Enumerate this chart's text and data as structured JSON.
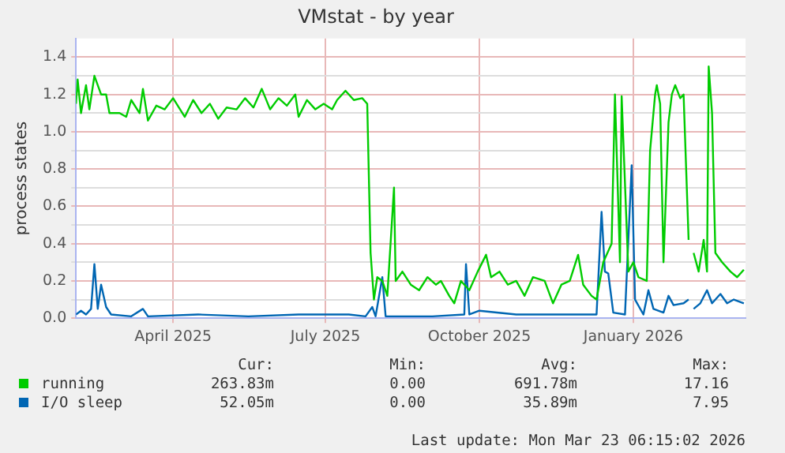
{
  "chart_data": {
    "type": "line",
    "title": "VMstat - by year",
    "ylabel": "process states",
    "xlim": [
      "2025-02-16",
      "2026-03-23"
    ],
    "xticks": [
      {
        "value": "2025-04-15",
        "label": "April 2025"
      },
      {
        "value": "2025-07-15",
        "label": "July 2025"
      },
      {
        "value": "2025-10-15",
        "label": "October 2025"
      },
      {
        "value": "2026-01-15",
        "label": "January 2026"
      }
    ],
    "ylim": [
      0,
      1.5
    ],
    "yticks": [
      {
        "value": 0,
        "label": "0.0"
      },
      {
        "value": 0.1,
        "label": null
      },
      {
        "value": 0.2,
        "label": "0.2"
      },
      {
        "value": 0.3,
        "label": null
      },
      {
        "value": 0.4,
        "label": "0.4"
      },
      {
        "value": 0.5,
        "label": null
      },
      {
        "value": 0.6,
        "label": "0.6"
      },
      {
        "value": 0.7,
        "label": null
      },
      {
        "value": 0.8,
        "label": "0.8"
      },
      {
        "value": 0.9,
        "label": null
      },
      {
        "value": 1,
        "label": "1.0"
      },
      {
        "value": 1.1,
        "label": null
      },
      {
        "value": 1.2,
        "label": "1.2"
      },
      {
        "value": 1.3,
        "label": null
      },
      {
        "value": 1.4,
        "label": "1.4"
      }
    ],
    "grid": true,
    "legend": "bottom left",
    "marker": "none",
    "line_style": "solid",
    "annotations": [
      "Cur:",
      "Min:",
      "Avg:",
      "Max:",
      "263.83m",
      "0.00",
      "691.78m",
      "17.16",
      "52.05m",
      "0.00",
      "35.89m",
      "7.95",
      "Last update: Mon Mar 23 06:15:02 2026"
    ],
    "series": [
      {
        "name": "running",
        "color": "#00cc00",
        "x": [
          "2025-02-16",
          "2025-02-17",
          "2025-02-19",
          "2025-02-22",
          "2025-02-24",
          "2025-02-27",
          "2025-03-03",
          "2025-03-06",
          "2025-03-08",
          "2025-03-14",
          "2025-03-18",
          "2025-03-21",
          "2025-03-26",
          "2025-03-28",
          "2025-03-31",
          "2025-04-05",
          "2025-04-10",
          "2025-04-15",
          "2025-04-22",
          "2025-04-27",
          "2025-05-02",
          "2025-05-07",
          "2025-05-12",
          "2025-05-17",
          "2025-05-23",
          "2025-05-28",
          "2025-06-02",
          "2025-06-07",
          "2025-06-12",
          "2025-06-17",
          "2025-06-22",
          "2025-06-27",
          "2025-06-29",
          "2025-07-04",
          "2025-07-09",
          "2025-07-14",
          "2025-07-19",
          "2025-07-22",
          "2025-07-27",
          "2025-08-01",
          "2025-08-06",
          "2025-08-09",
          "2025-08-11",
          "2025-08-13",
          "2025-08-15",
          "2025-08-18",
          "2025-08-21",
          "2025-08-25",
          "2025-08-26",
          "2025-08-30",
          "2025-09-04",
          "2025-09-09",
          "2025-09-14",
          "2025-09-19",
          "2025-09-22",
          "2025-09-27",
          "2025-09-30",
          "2025-10-04",
          "2025-10-09",
          "2025-10-14",
          "2025-10-19",
          "2025-10-22",
          "2025-10-27",
          "2025-11-01",
          "2025-11-06",
          "2025-11-11",
          "2025-11-16",
          "2025-11-23",
          "2025-11-28",
          "2025-12-03",
          "2025-12-08",
          "2025-12-13",
          "2025-12-16",
          "2025-12-21",
          "2025-12-24",
          "2025-12-28",
          "2026-01-02",
          "2026-01-04",
          "2026-01-07",
          "2026-01-08",
          "2026-01-12",
          "2026-01-15",
          "2026-01-18",
          "2026-01-23",
          "2026-01-25",
          "2026-01-28",
          "2026-01-29",
          "2026-01-31",
          "2026-02-02",
          "2026-02-05",
          "2026-02-07",
          "2026-02-09",
          "2026-02-12",
          "2026-02-14",
          "2026-02-17",
          "2026-02-18",
          "2026-02-20",
          "2026-02-23",
          "2026-02-26",
          "2026-02-28",
          "2026-03-01",
          "2026-03-03",
          "2026-03-05",
          "2026-03-09",
          "2026-03-14",
          "2026-03-18",
          "2026-03-22"
        ],
        "values": [
          1.15,
          1.28,
          1.1,
          1.25,
          1.12,
          1.3,
          1.2,
          1.2,
          1.1,
          1.1,
          1.08,
          1.17,
          1.1,
          1.23,
          1.06,
          1.14,
          1.12,
          1.18,
          1.08,
          1.17,
          1.1,
          1.15,
          1.07,
          1.13,
          1.12,
          1.18,
          1.13,
          1.23,
          1.12,
          1.18,
          1.14,
          1.2,
          1.08,
          1.17,
          1.12,
          1.15,
          1.12,
          1.17,
          1.22,
          1.17,
          1.18,
          1.15,
          0.35,
          0.1,
          0.22,
          0.2,
          0.12,
          0.7,
          0.2,
          0.25,
          0.18,
          0.15,
          0.22,
          0.18,
          0.2,
          0.12,
          0.08,
          0.2,
          0.15,
          0.25,
          0.34,
          0.22,
          0.25,
          0.18,
          0.2,
          0.12,
          0.22,
          0.2,
          0.08,
          0.18,
          0.2,
          0.34,
          0.18,
          0.12,
          0.1,
          0.3,
          0.4,
          1.2,
          0.3,
          1.19,
          0.25,
          0.3,
          0.22,
          0.2,
          0.9,
          1.2,
          1.25,
          1.15,
          0.3,
          1.05,
          1.2,
          1.25,
          1.18,
          1.2,
          0.42,
          null,
          0.35,
          0.25,
          0.42,
          0.25,
          1.35,
          1.1,
          0.35,
          0.3,
          0.25,
          0.22,
          0.26
        ]
      },
      {
        "name": "I/O sleep",
        "color": "#0066b3",
        "x": [
          "2025-02-16",
          "2025-02-19",
          "2025-02-22",
          "2025-02-25",
          "2025-02-27",
          "2025-03-01",
          "2025-03-03",
          "2025-03-06",
          "2025-03-09",
          "2025-03-21",
          "2025-03-28",
          "2025-03-31",
          "2025-04-30",
          "2025-05-30",
          "2025-06-29",
          "2025-07-29",
          "2025-08-08",
          "2025-08-12",
          "2025-08-14",
          "2025-08-18",
          "2025-08-20",
          "2025-09-17",
          "2025-10-06",
          "2025-10-07",
          "2025-10-09",
          "2025-10-15",
          "2025-11-06",
          "2025-12-24",
          "2025-12-27",
          "2025-12-29",
          "2025-12-31",
          "2026-01-03",
          "2026-01-10",
          "2026-01-14",
          "2026-01-16",
          "2026-01-21",
          "2026-01-24",
          "2026-01-27",
          "2026-02-02",
          "2026-02-05",
          "2026-02-08",
          "2026-02-14",
          "2026-02-17",
          "2026-02-18",
          "2026-02-20",
          "2026-02-24",
          "2026-02-28",
          "2026-03-03",
          "2026-03-08",
          "2026-03-12",
          "2026-03-16",
          "2026-03-22"
        ],
        "values": [
          0.02,
          0.04,
          0.02,
          0.05,
          0.29,
          0.05,
          0.18,
          0.06,
          0.02,
          0.01,
          0.05,
          0.01,
          0.02,
          0.01,
          0.02,
          0.02,
          0.01,
          0.06,
          0.01,
          0.22,
          0.01,
          0.01,
          0.02,
          0.29,
          0.02,
          0.04,
          0.02,
          0.02,
          0.57,
          0.25,
          0.24,
          0.03,
          0.02,
          0.82,
          0.1,
          0.02,
          0.15,
          0.05,
          0.03,
          0.12,
          0.07,
          0.08,
          0.1,
          null,
          0.05,
          0.08,
          0.15,
          0.08,
          0.13,
          0.08,
          0.1,
          0.08
        ]
      }
    ]
  }
}
